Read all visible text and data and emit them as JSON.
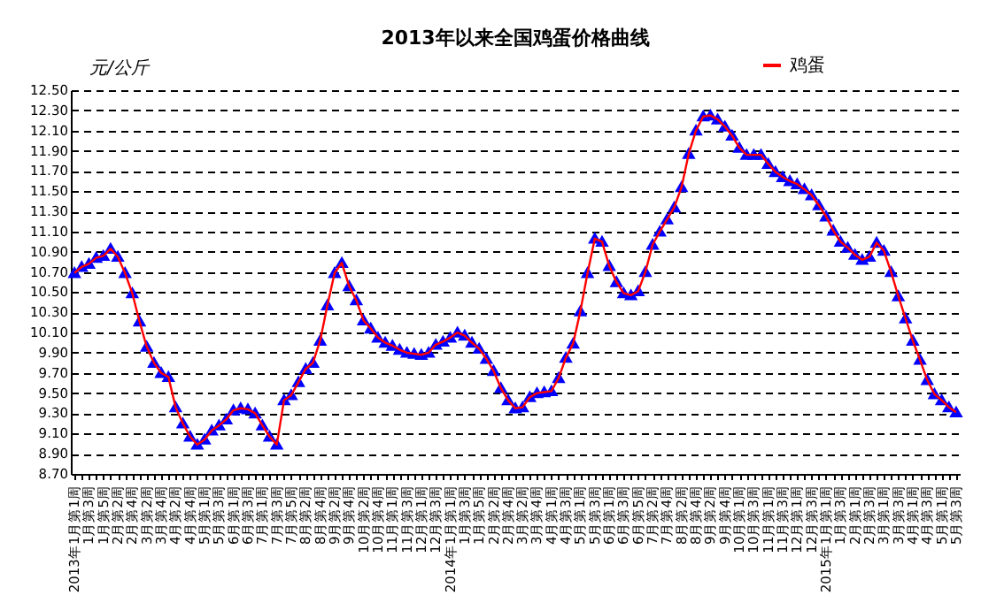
{
  "chart_data": {
    "type": "line",
    "title": "2013年以来全国鸡蛋价格曲线",
    "ylabel": "元/公斤",
    "categories": [
      "2013年1月第1周",
      null,
      "1月第3周",
      null,
      "1月第5周",
      null,
      "2月第2周",
      null,
      "2月第4周",
      null,
      "3月第2周",
      null,
      "3月第4周",
      null,
      "4月第2周",
      null,
      "4月第4周",
      null,
      "5月第1周",
      null,
      "5月第3周",
      null,
      "6月第1周",
      null,
      "6月第3周",
      null,
      "7月第1周",
      null,
      "7月第3周",
      null,
      "7月第5周",
      null,
      "8月第2周",
      null,
      "8月第4周",
      null,
      "9月第2周",
      null,
      "9月第4周",
      null,
      "10月第2周",
      null,
      "10月第4周",
      null,
      "11月第1周",
      null,
      "11月第3周",
      null,
      "12月第1周",
      null,
      "12月第3周",
      null,
      "2014年1月第1周",
      null,
      "1月第3周",
      null,
      "1月第5周",
      null,
      "2月第2周",
      null,
      "2月第4周",
      null,
      "3月第2周",
      null,
      "3月第4周",
      null,
      "4月第1周",
      null,
      "4月第3周",
      null,
      "5月第1周",
      null,
      "5月第3周",
      null,
      "6月第1周",
      null,
      "6月第3周",
      null,
      "6月第5周",
      null,
      "7月第2周",
      null,
      "7月第4周",
      null,
      "8月第2周",
      null,
      "8月第4周",
      null,
      "9月第2周",
      null,
      "9月第4周",
      null,
      "10月第1周",
      null,
      "10月第3周",
      null,
      "11月第1周",
      null,
      "11月第3周",
      null,
      "12月第1周",
      null,
      "12月第3周",
      null,
      "2015年1月第1周",
      null,
      "1月第3周",
      null,
      "2月第1周",
      null,
      "2月第3周",
      null,
      "3月第1周",
      null,
      "3月第3周",
      null,
      "4月第1周",
      null,
      "4月第3周",
      null,
      "5月第1周",
      null,
      "5月第3周"
    ],
    "series": [
      {
        "name": "鸡蛋",
        "color": "#ff0000",
        "values": [
          10.69,
          10.75,
          10.78,
          10.84,
          10.86,
          10.93,
          10.85,
          10.69,
          10.49,
          10.21,
          9.96,
          9.8,
          9.7,
          9.66,
          9.36,
          9.2,
          9.07,
          8.99,
          9.04,
          9.13,
          9.18,
          9.24,
          9.33,
          9.35,
          9.34,
          9.3,
          9.18,
          9.07,
          8.99,
          9.43,
          9.48,
          9.61,
          9.74,
          9.8,
          10.02,
          10.37,
          10.69,
          10.79,
          10.56,
          10.42,
          10.22,
          10.14,
          10.05,
          10.0,
          9.97,
          9.93,
          9.9,
          9.89,
          9.88,
          9.9,
          9.98,
          10.01,
          10.05,
          10.1,
          10.07,
          10.0,
          9.94,
          9.84,
          9.72,
          9.55,
          9.43,
          9.35,
          9.36,
          9.46,
          9.5,
          9.51,
          9.52,
          9.65,
          9.85,
          9.99,
          10.31,
          10.69,
          11.03,
          11.0,
          10.76,
          10.6,
          10.49,
          10.47,
          10.51,
          10.7,
          10.97,
          11.1,
          11.22,
          11.34,
          11.54,
          11.87,
          12.1,
          12.24,
          12.25,
          12.21,
          12.14,
          12.05,
          11.93,
          11.86,
          11.86,
          11.86,
          11.77,
          11.69,
          11.64,
          11.6,
          11.57,
          11.52,
          11.46,
          11.36,
          11.25,
          11.11,
          11.0,
          10.94,
          10.87,
          10.82,
          10.85,
          10.99,
          10.91,
          10.7,
          10.46,
          10.24,
          10.02,
          9.83,
          9.63,
          9.49,
          9.43,
          9.36,
          9.31
        ]
      }
    ],
    "ylim": [
      8.7,
      12.5
    ],
    "yticks": [
      {
        "value": 8.7,
        "label": "8.70"
      },
      {
        "value": 8.9,
        "label": "8.90"
      },
      {
        "value": 9.1,
        "label": "9.10"
      },
      {
        "value": 9.3,
        "label": "9.30"
      },
      {
        "value": 9.5,
        "label": "9.50"
      },
      {
        "value": 9.7,
        "label": "9.70"
      },
      {
        "value": 9.9,
        "label": "9.90"
      },
      {
        "value": 10.1,
        "label": "10.10"
      },
      {
        "value": 10.3,
        "label": "10.30"
      },
      {
        "value": 10.5,
        "label": "10.50"
      },
      {
        "value": 10.7,
        "label": "10.70"
      },
      {
        "value": 10.9,
        "label": "10.90"
      },
      {
        "value": 11.1,
        "label": "11.10"
      },
      {
        "value": 11.3,
        "label": "11.30"
      },
      {
        "value": 11.5,
        "label": "11.50"
      },
      {
        "value": 11.7,
        "label": "11.70"
      },
      {
        "value": 11.9,
        "label": "11.90"
      },
      {
        "value": 12.1,
        "label": "12.10"
      },
      {
        "value": 12.3,
        "label": "12.30"
      },
      {
        "value": 12.5,
        "label": "12.50"
      }
    ],
    "grid": "y",
    "legend": "top right",
    "marker": "triangle",
    "line_style": "solid"
  }
}
